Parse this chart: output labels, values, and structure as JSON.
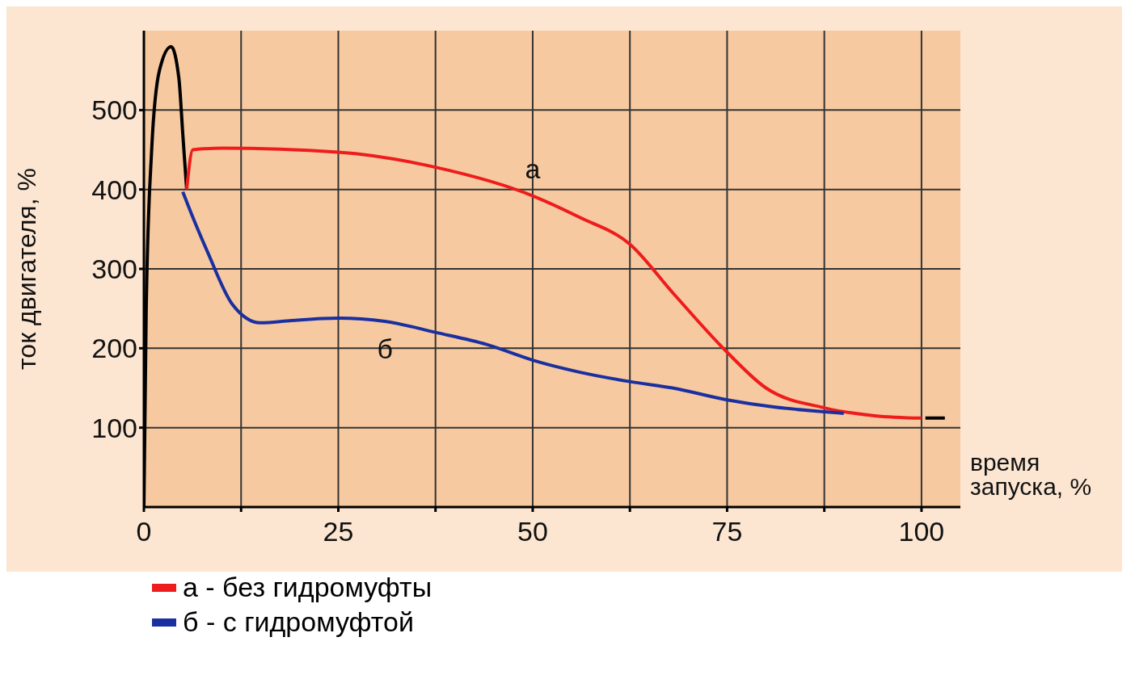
{
  "chart_data": {
    "type": "line",
    "xlabel": "время запуска, %",
    "ylabel": "ток двигателя, %",
    "xlim": [
      0,
      105
    ],
    "ylim": [
      0,
      600
    ],
    "xticks": [
      0,
      {
        "value": 12.5,
        "label": null
      },
      25,
      {
        "value": 37.5,
        "label": null
      },
      50,
      {
        "value": 62.5,
        "label": null
      },
      75,
      {
        "value": 87.5,
        "label": null
      },
      100
    ],
    "yticks": [
      100,
      200,
      300,
      400,
      500
    ],
    "grid": true,
    "legend": "bottom",
    "marker": "none",
    "line_style": "solid",
    "series": [
      {
        "color": "#000000",
        "x": [
          0,
          0.3,
          1,
          2,
          3.5,
          4.5,
          5,
          5.5,
          50,
          100.5,
          103
        ],
        "values": [
          0,
          250,
          450,
          550,
          580,
          540,
          470,
          400,
          null,
          112,
          112
        ]
      },
      {
        "name": "а - без гидромуфты",
        "color": "#ee1c1c",
        "x": [
          5.5,
          6.3,
          10,
          25,
          37.5,
          50,
          56,
          62.5,
          68,
          75,
          80,
          87.5,
          94,
          100
        ],
        "values": [
          400,
          450,
          452,
          447,
          428,
          392,
          365,
          331,
          270,
          195,
          150,
          125,
          115,
          112
        ]
      },
      {
        "name": "б - с гидромуфтой",
        "color": "#1a2fa0",
        "x": [
          5,
          6.5,
          8.2,
          11.4,
          15,
          19,
          25,
          31,
          37.5,
          44,
          50,
          56,
          62.5,
          68,
          75,
          81,
          87.5,
          90
        ],
        "values": [
          397,
          360,
          321,
          255,
          232,
          235,
          238,
          234,
          220,
          205,
          185,
          170,
          158,
          150,
          135,
          126,
          120,
          118
        ]
      }
    ],
    "annotations": [
      "а",
      "б"
    ]
  }
}
